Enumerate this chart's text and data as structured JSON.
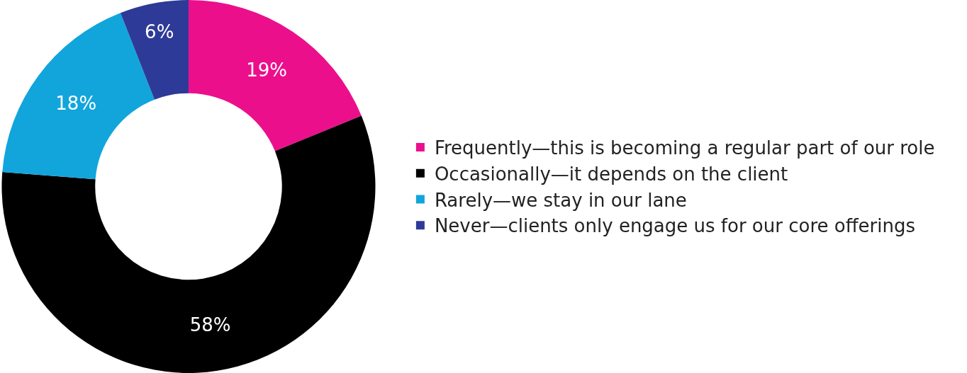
{
  "chart_data": {
    "type": "donut",
    "categories": [
      "Frequently—this is becoming a regular part of our role",
      "Occasionally—it depends on the client",
      "Rarely—we stay in our lane",
      "Never—clients only engage us for our core offerings"
    ],
    "values": [
      19,
      58,
      18,
      6
    ],
    "colors": [
      "#ec0f8c",
      "#000000",
      "#11a5dc",
      "#2e3a97"
    ],
    "value_labels": [
      "19%",
      "58%",
      "18%",
      "6%"
    ],
    "legend": "right"
  }
}
